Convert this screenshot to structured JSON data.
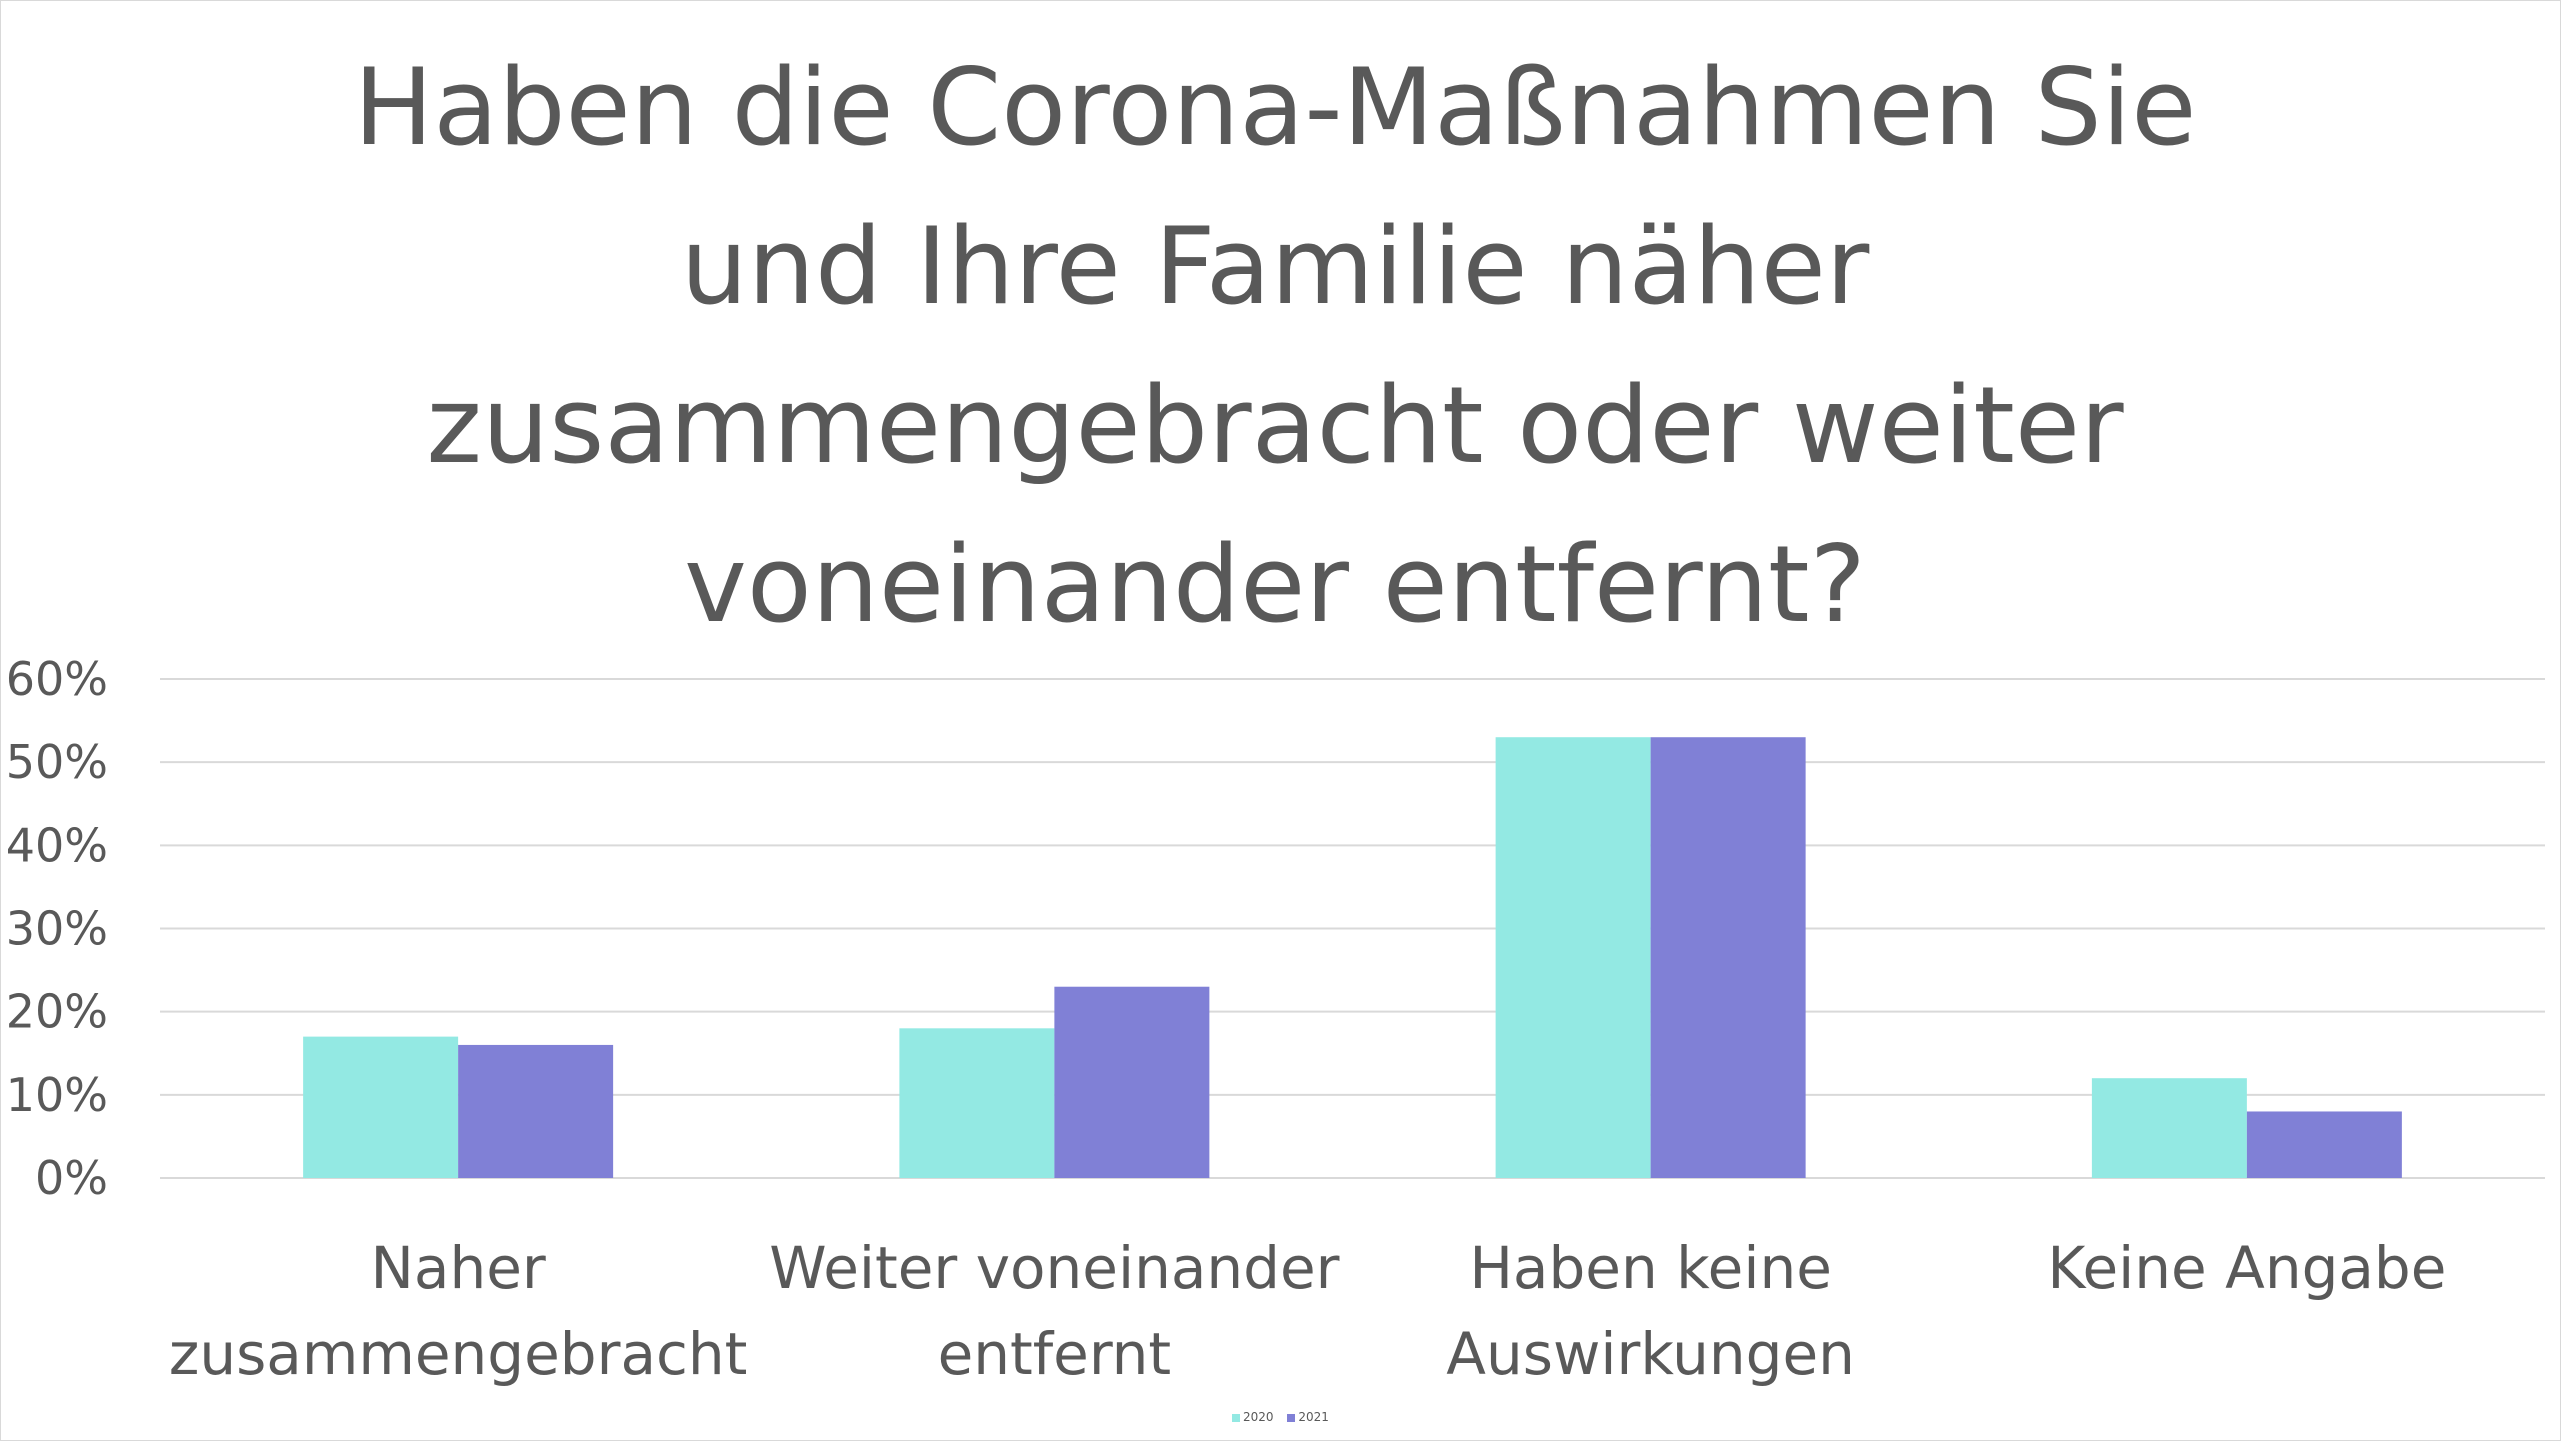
{
  "chart_data": {
    "type": "bar",
    "title": "Haben die Corona-Maßnahmen Sie und Ihre Familie näher zusammengebracht oder weiter voneinander entfernt?",
    "categories": [
      [
        "Naher",
        "zusammengebracht"
      ],
      [
        "Weiter voneinander",
        "entfernt"
      ],
      [
        "Haben keine",
        "Auswirkungen"
      ],
      [
        "Keine Angabe"
      ]
    ],
    "series": [
      {
        "name": "2020",
        "color": "#93e9e3",
        "values": [
          17,
          18,
          53,
          12
        ]
      },
      {
        "name": "2021",
        "color": "#8080d6",
        "values": [
          16,
          23,
          53,
          8
        ]
      }
    ],
    "ylim": [
      0,
      60
    ],
    "yticks": [
      0,
      10,
      20,
      30,
      40,
      50,
      60
    ],
    "ytick_labels": [
      "0%",
      "10%",
      "20%",
      "30%",
      "40%",
      "50%",
      "60%"
    ],
    "grid": true,
    "legend_position": "bottom"
  }
}
